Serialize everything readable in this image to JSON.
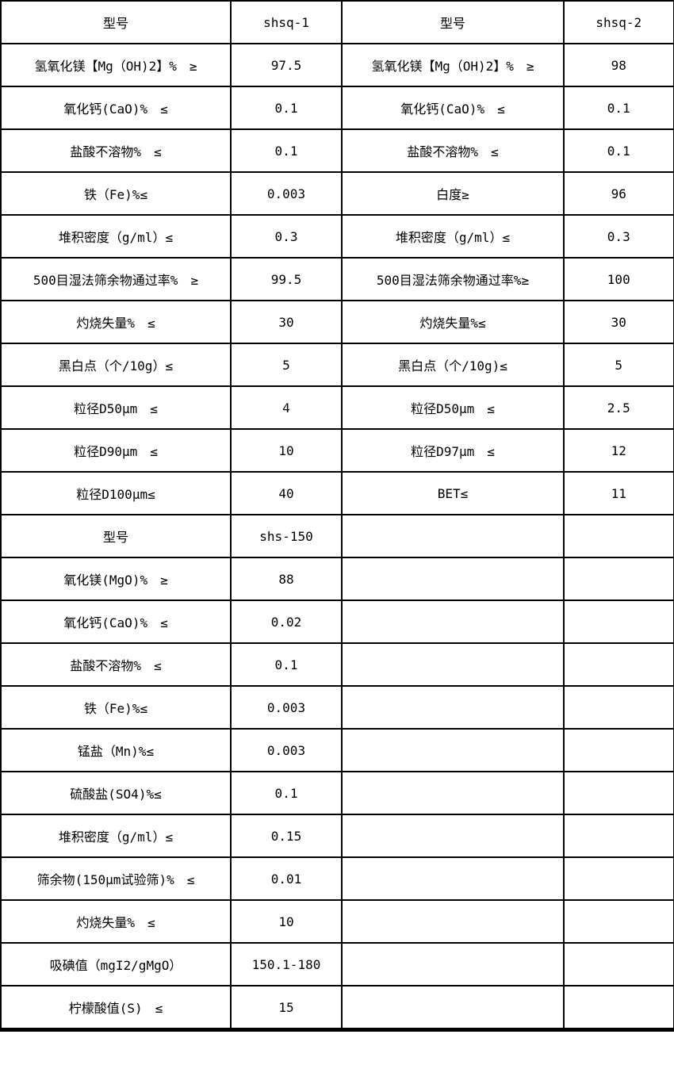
{
  "document": {
    "kind": "product-specification-table",
    "background_color": "#ffffff",
    "border_color": "#000000",
    "text_color": "#000000"
  },
  "table": {
    "column_roles": [
      "spec-name",
      "spec-value",
      "spec-name",
      "spec-value"
    ],
    "rows": [
      [
        "型号",
        "shsq-1",
        "型号",
        "shsq-2"
      ],
      [
        "氢氧化镁【Mg（OH)2】%　≥",
        "97.5",
        "氢氧化镁【Mg（OH)2】%　≥",
        "98"
      ],
      [
        "氧化钙(CaO)%　≤",
        "0.1",
        "氧化钙(CaO)%　≤",
        "0.1"
      ],
      [
        "盐酸不溶物%　≤",
        "0.1",
        "盐酸不溶物%　≤",
        "0.1"
      ],
      [
        "铁（Fe)%≤",
        "0.003",
        "白度≥",
        "96"
      ],
      [
        "堆积密度（g/ml）≤",
        "0.3",
        "堆积密度（g/ml）≤",
        "0.3"
      ],
      [
        "500目湿法筛余物通过率%　≥",
        "99.5",
        "500目湿法筛余物通过率%≥",
        "100"
      ],
      [
        "灼烧失量%　≤",
        "30",
        "灼烧失量%≤",
        "30"
      ],
      [
        "黑白点（个/10g）≤",
        "5",
        "黑白点（个/10g)≤",
        "5"
      ],
      [
        "粒径D50μm　≤",
        "4",
        "粒径D50μm　≤",
        "2.5"
      ],
      [
        "粒径D90μm　≤",
        "10",
        "粒径D97μm　≤",
        "12"
      ],
      [
        "粒径D100μm≤",
        "40",
        "BET≤",
        "11"
      ],
      [
        "型号",
        "shs-150",
        "",
        ""
      ],
      [
        "氧化镁(MgO)%　≥",
        "88",
        "",
        ""
      ],
      [
        "氧化钙(CaO)%　≤",
        "0.02",
        "",
        ""
      ],
      [
        "盐酸不溶物%　≤",
        "0.1",
        "",
        ""
      ],
      [
        "铁（Fe)%≤",
        "0.003",
        "",
        ""
      ],
      [
        "锰盐（Mn)%≤",
        "0.003",
        "",
        ""
      ],
      [
        "硫酸盐(SO4)%≤",
        "0.1",
        "",
        ""
      ],
      [
        "堆积密度（g/ml）≤",
        "0.15",
        "",
        ""
      ],
      [
        "筛余物(150μm试验筛)%　≤",
        "0.01",
        "",
        ""
      ],
      [
        "灼烧失量%　≤",
        "10",
        "",
        ""
      ],
      [
        "吸碘值（mgI2/gMgO）",
        "150.1-180",
        "",
        ""
      ],
      [
        "柠檬酸值(S)　≤",
        "15",
        "",
        ""
      ]
    ]
  }
}
